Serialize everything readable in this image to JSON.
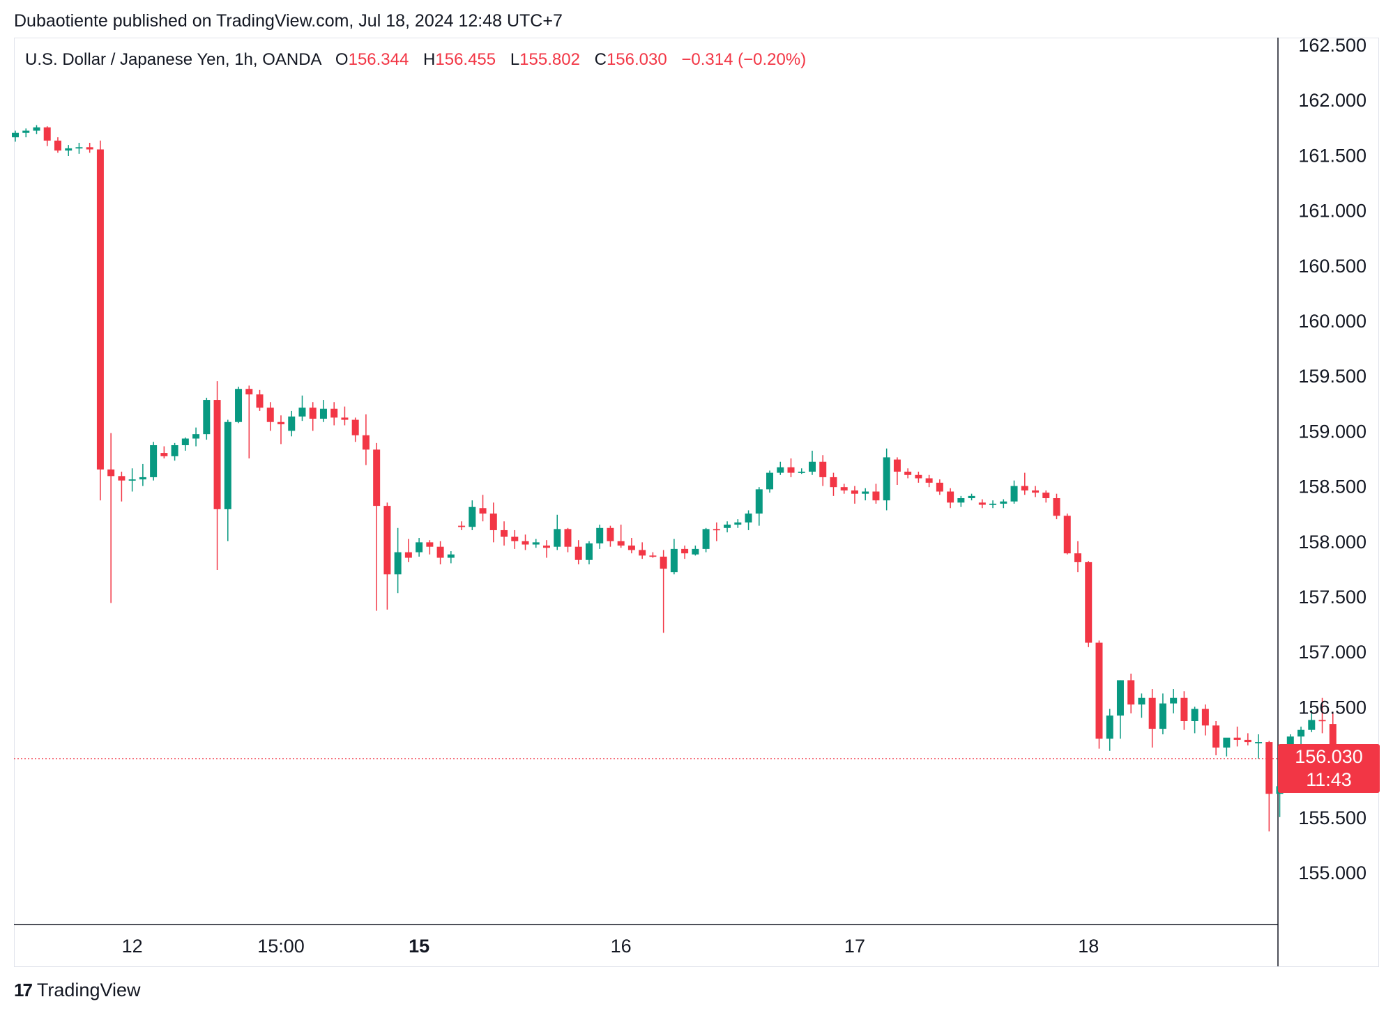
{
  "header": {
    "publisher_line": "Dubaotiente published on TradingView.com, Jul 18, 2024 12:48 UTC+7"
  },
  "legend": {
    "symbol": "U.S. Dollar / Japanese Yen, 1h, OANDA",
    "open_label": "O",
    "open": "156.344",
    "high_label": "H",
    "high": "156.455",
    "low_label": "L",
    "low": "155.802",
    "close_label": "C",
    "close": "156.030",
    "change": "−0.314 (−0.20%)"
  },
  "price_tag": {
    "price": "156.030",
    "countdown": "11:43"
  },
  "footer": {
    "brand": "TradingView",
    "logo": "17"
  },
  "colors": {
    "up": "#089981",
    "down": "#f23645",
    "grid": "#e0e3eb",
    "text": "#131722"
  },
  "chart_data": {
    "type": "candlestick",
    "instrument": "USDJPY",
    "timeframe": "1h",
    "y_ticks": [
      "162.500",
      "162.000",
      "161.500",
      "161.000",
      "160.500",
      "160.000",
      "159.500",
      "159.000",
      "158.500",
      "158.000",
      "157.500",
      "157.000",
      "156.500",
      "156.000",
      "155.500",
      "155.000"
    ],
    "y_tick_labels_shown": [
      "162.500",
      "162.000",
      "161.500",
      "161.000",
      "160.500",
      "160.000",
      "159.500",
      "159.000",
      "158.500",
      "158.000",
      "157.500",
      "157.000",
      "156.500",
      "155.500",
      "155.000"
    ],
    "ylim": [
      154.5,
      162.55
    ],
    "x_labels": [
      {
        "label": "12",
        "bar": 11,
        "bold": false
      },
      {
        "label": "15:00",
        "bar": 25,
        "bold": false
      },
      {
        "label": "15",
        "bar": 38,
        "bold": true
      },
      {
        "label": "16",
        "bar": 57,
        "bold": false
      },
      {
        "label": "17",
        "bar": 79,
        "bold": false
      },
      {
        "label": "18",
        "bar": 101,
        "bold": false
      }
    ],
    "current_price": 156.03,
    "ohlc": [
      [
        161.66,
        161.72,
        161.62,
        161.7
      ],
      [
        161.7,
        161.74,
        161.66,
        161.72
      ],
      [
        161.72,
        161.77,
        161.69,
        161.75
      ],
      [
        161.75,
        161.76,
        161.58,
        161.63
      ],
      [
        161.63,
        161.66,
        161.52,
        161.54
      ],
      [
        161.54,
        161.59,
        161.49,
        161.56
      ],
      [
        161.56,
        161.61,
        161.51,
        161.57
      ],
      [
        161.57,
        161.61,
        161.52,
        161.55
      ],
      [
        161.55,
        161.63,
        158.37,
        158.65
      ],
      [
        158.65,
        158.98,
        157.44,
        158.59
      ],
      [
        158.59,
        158.63,
        158.36,
        158.55
      ],
      [
        158.55,
        158.66,
        158.45,
        158.56
      ],
      [
        158.56,
        158.7,
        158.5,
        158.58
      ],
      [
        158.58,
        158.9,
        158.55,
        158.87
      ],
      [
        158.8,
        158.86,
        158.75,
        158.77
      ],
      [
        158.77,
        158.89,
        158.73,
        158.87
      ],
      [
        158.87,
        158.94,
        158.82,
        158.93
      ],
      [
        158.93,
        159.03,
        158.86,
        158.97
      ],
      [
        158.97,
        159.3,
        158.92,
        159.28
      ],
      [
        159.28,
        159.45,
        157.74,
        158.29
      ],
      [
        158.29,
        159.1,
        158.0,
        159.08
      ],
      [
        159.08,
        159.4,
        159.07,
        159.38
      ],
      [
        159.38,
        159.41,
        158.75,
        159.33
      ],
      [
        159.33,
        159.37,
        159.18,
        159.21
      ],
      [
        159.21,
        159.26,
        159.0,
        159.08
      ],
      [
        159.08,
        159.14,
        158.88,
        159.06
      ],
      [
        159.0,
        159.18,
        158.95,
        159.13
      ],
      [
        159.13,
        159.32,
        159.09,
        159.21
      ],
      [
        159.21,
        159.26,
        159.0,
        159.11
      ],
      [
        159.11,
        159.28,
        159.08,
        159.2
      ],
      [
        159.2,
        159.26,
        159.05,
        159.12
      ],
      [
        159.12,
        159.22,
        159.05,
        159.1
      ],
      [
        159.1,
        159.12,
        158.9,
        158.96
      ],
      [
        158.96,
        159.15,
        158.69,
        158.83
      ],
      [
        158.83,
        158.89,
        157.37,
        158.32
      ],
      [
        158.32,
        158.35,
        157.38,
        157.7
      ],
      [
        157.7,
        158.12,
        157.53,
        157.9
      ],
      [
        157.9,
        158.02,
        157.81,
        157.85
      ],
      [
        157.9,
        158.03,
        157.86,
        157.99
      ],
      [
        157.99,
        158.01,
        157.88,
        157.95
      ],
      [
        157.95,
        158.0,
        157.79,
        157.85
      ],
      [
        157.85,
        157.91,
        157.8,
        157.88
      ],
      [
        158.14,
        158.18,
        158.1,
        158.13
      ],
      [
        158.13,
        158.37,
        158.1,
        158.31
      ],
      [
        158.3,
        158.42,
        158.18,
        158.25
      ],
      [
        158.25,
        158.35,
        157.99,
        158.1
      ],
      [
        158.1,
        158.18,
        157.96,
        158.04
      ],
      [
        158.04,
        158.1,
        157.93,
        158.0
      ],
      [
        158.0,
        158.06,
        157.92,
        157.97
      ],
      [
        157.97,
        158.02,
        157.94,
        157.99
      ],
      [
        157.96,
        158.01,
        157.85,
        157.94
      ],
      [
        157.95,
        158.24,
        157.92,
        158.11
      ],
      [
        158.11,
        158.12,
        157.9,
        157.95
      ],
      [
        157.95,
        158.01,
        157.79,
        157.83
      ],
      [
        157.83,
        158.0,
        157.79,
        157.98
      ],
      [
        157.98,
        158.15,
        157.93,
        158.12
      ],
      [
        158.12,
        158.14,
        157.95,
        158.0
      ],
      [
        158.0,
        158.15,
        157.94,
        157.96
      ],
      [
        157.96,
        158.03,
        157.89,
        157.92
      ],
      [
        157.92,
        157.99,
        157.84,
        157.87
      ],
      [
        157.87,
        157.9,
        157.85,
        157.86
      ],
      [
        157.86,
        157.92,
        157.17,
        157.75
      ],
      [
        157.72,
        158.02,
        157.7,
        157.93
      ],
      [
        157.93,
        157.96,
        157.84,
        157.89
      ],
      [
        157.88,
        157.96,
        157.87,
        157.93
      ],
      [
        157.93,
        158.12,
        157.9,
        158.11
      ],
      [
        158.11,
        158.17,
        158.0,
        158.1
      ],
      [
        158.12,
        158.18,
        158.08,
        158.15
      ],
      [
        158.15,
        158.2,
        158.12,
        158.17
      ],
      [
        158.17,
        158.28,
        158.1,
        158.25
      ],
      [
        158.25,
        158.49,
        158.14,
        158.47
      ],
      [
        158.47,
        158.64,
        158.44,
        158.62
      ],
      [
        158.62,
        158.72,
        158.6,
        158.67
      ],
      [
        158.67,
        158.75,
        158.58,
        158.62
      ],
      [
        158.62,
        158.66,
        158.61,
        158.63
      ],
      [
        158.63,
        158.82,
        158.6,
        158.72
      ],
      [
        158.72,
        158.78,
        158.5,
        158.58
      ],
      [
        158.58,
        158.62,
        158.41,
        158.49
      ],
      [
        158.49,
        158.52,
        158.43,
        158.46
      ],
      [
        158.46,
        158.5,
        158.34,
        158.43
      ],
      [
        158.43,
        158.48,
        158.37,
        158.45
      ],
      [
        158.45,
        158.52,
        158.34,
        158.37
      ],
      [
        158.37,
        158.84,
        158.28,
        158.76
      ],
      [
        158.74,
        158.76,
        158.51,
        158.63
      ],
      [
        158.63,
        158.66,
        158.57,
        158.6
      ],
      [
        158.6,
        158.63,
        158.53,
        158.57
      ],
      [
        158.57,
        158.6,
        158.49,
        158.53
      ],
      [
        158.53,
        158.56,
        158.42,
        158.45
      ],
      [
        158.45,
        158.48,
        158.3,
        158.35
      ],
      [
        158.35,
        158.41,
        158.31,
        158.39
      ],
      [
        158.39,
        158.43,
        158.37,
        158.41
      ],
      [
        158.35,
        158.38,
        158.3,
        158.33
      ],
      [
        158.33,
        158.37,
        158.3,
        158.34
      ],
      [
        158.34,
        158.38,
        158.3,
        158.36
      ],
      [
        158.36,
        158.55,
        158.34,
        158.5
      ],
      [
        158.5,
        158.62,
        158.42,
        158.46
      ],
      [
        158.46,
        158.5,
        158.4,
        158.44
      ],
      [
        158.44,
        158.46,
        158.35,
        158.39
      ],
      [
        158.39,
        158.43,
        158.2,
        158.23
      ],
      [
        158.23,
        158.25,
        157.88,
        157.89
      ],
      [
        157.89,
        158.0,
        157.72,
        157.81
      ],
      [
        157.81,
        157.82,
        157.04,
        157.08
      ],
      [
        157.08,
        157.1,
        156.12,
        156.21
      ],
      [
        156.21,
        156.48,
        156.1,
        156.42
      ],
      [
        156.42,
        156.74,
        156.21,
        156.74
      ],
      [
        156.74,
        156.8,
        156.44,
        156.52
      ],
      [
        156.52,
        156.62,
        156.4,
        156.58
      ],
      [
        156.58,
        156.66,
        156.13,
        156.3
      ],
      [
        156.3,
        156.62,
        156.25,
        156.53
      ],
      [
        156.53,
        156.66,
        156.44,
        156.58
      ],
      [
        156.58,
        156.64,
        156.29,
        156.37
      ],
      [
        156.37,
        156.5,
        156.26,
        156.48
      ],
      [
        156.48,
        156.52,
        156.24,
        156.33
      ],
      [
        156.33,
        156.37,
        156.06,
        156.13
      ],
      [
        156.13,
        156.2,
        156.05,
        156.22
      ],
      [
        156.22,
        156.32,
        156.14,
        156.2
      ],
      [
        156.2,
        156.26,
        156.15,
        156.18
      ],
      [
        156.18,
        156.25,
        156.03,
        156.18
      ],
      [
        156.18,
        156.19,
        155.37,
        155.71
      ],
      [
        155.71,
        155.88,
        155.5,
        155.78
      ],
      [
        155.78,
        156.25,
        155.78,
        156.23
      ],
      [
        156.23,
        156.32,
        156.16,
        156.29
      ],
      [
        156.29,
        156.47,
        156.27,
        156.38
      ],
      [
        156.38,
        156.58,
        156.26,
        156.37
      ],
      [
        156.344,
        156.455,
        155.802,
        156.03
      ]
    ]
  }
}
